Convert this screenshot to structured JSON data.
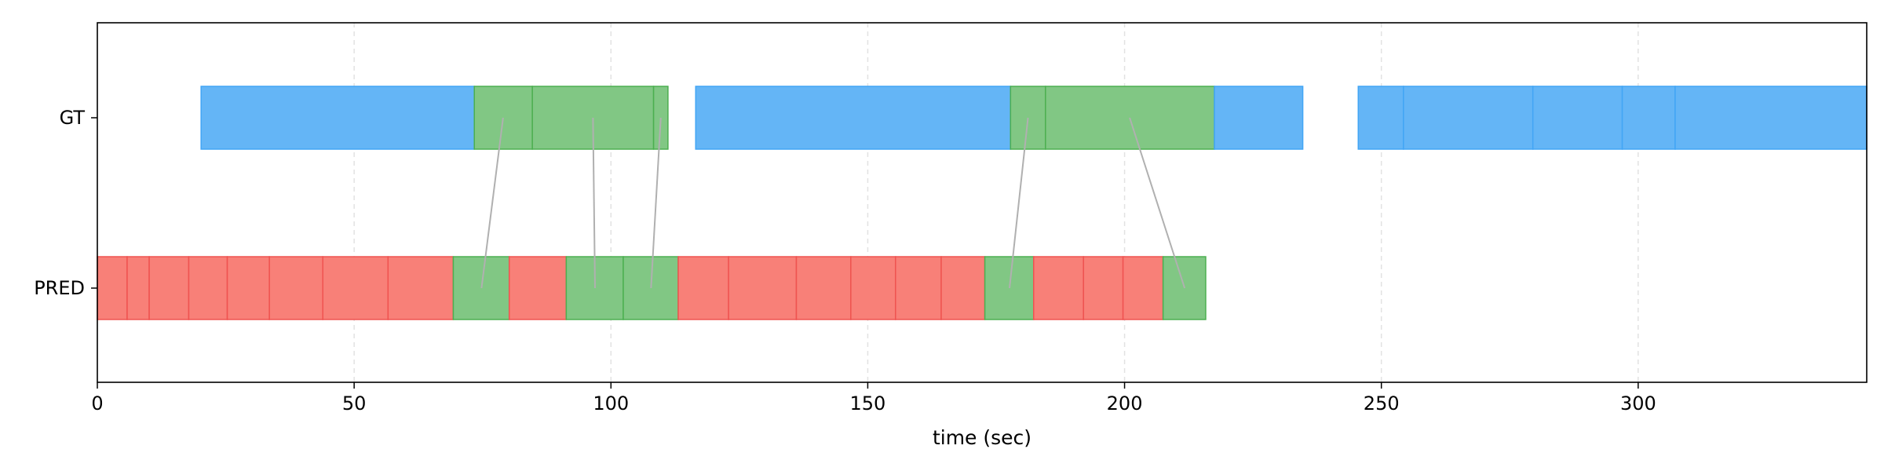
{
  "chart_data": {
    "type": "timeline",
    "xlabel": "time (sec)",
    "xlim": [
      0,
      344.5
    ],
    "xticks": [
      0,
      50,
      100,
      150,
      200,
      250,
      300
    ],
    "grid": "vertical-dashed",
    "rows": [
      "GT",
      "PRED"
    ],
    "colors": {
      "unmatched_gt": "#64b5f6",
      "unmatched_gt_edge": "#42a5f5",
      "matched": "#81c784",
      "matched_edge": "#4caf50",
      "unmatched_pred": "#f88078",
      "unmatched_pred_edge": "#ef5350",
      "link": "#b0b0b0"
    },
    "gt_segments": [
      {
        "start": 20.2,
        "end": 73.4,
        "matched": false
      },
      {
        "start": 73.4,
        "end": 84.7,
        "matched": true
      },
      {
        "start": 84.7,
        "end": 108.3,
        "matched": true
      },
      {
        "start": 108.3,
        "end": 111.1,
        "matched": true
      },
      {
        "start": 116.5,
        "end": 177.8,
        "matched": false
      },
      {
        "start": 177.8,
        "end": 184.6,
        "matched": true
      },
      {
        "start": 184.6,
        "end": 217.5,
        "matched": true
      },
      {
        "start": 217.5,
        "end": 234.7,
        "matched": false
      },
      {
        "start": 245.5,
        "end": 254.3,
        "matched": false
      },
      {
        "start": 254.3,
        "end": 279.5,
        "matched": false
      },
      {
        "start": 279.5,
        "end": 296.9,
        "matched": false
      },
      {
        "start": 296.9,
        "end": 307.2,
        "matched": false
      },
      {
        "start": 307.2,
        "end": 344.5,
        "matched": false
      }
    ],
    "pred_segments": [
      {
        "start": 0.0,
        "end": 5.8,
        "matched": false
      },
      {
        "start": 5.8,
        "end": 10.1,
        "matched": false
      },
      {
        "start": 10.1,
        "end": 17.8,
        "matched": false
      },
      {
        "start": 17.8,
        "end": 25.3,
        "matched": false
      },
      {
        "start": 25.3,
        "end": 33.5,
        "matched": false
      },
      {
        "start": 33.5,
        "end": 43.9,
        "matched": false
      },
      {
        "start": 43.9,
        "end": 56.6,
        "matched": false
      },
      {
        "start": 56.6,
        "end": 69.3,
        "matched": false
      },
      {
        "start": 69.3,
        "end": 80.2,
        "matched": true
      },
      {
        "start": 80.2,
        "end": 91.3,
        "matched": false
      },
      {
        "start": 91.3,
        "end": 102.4,
        "matched": true
      },
      {
        "start": 102.4,
        "end": 113.1,
        "matched": true
      },
      {
        "start": 113.1,
        "end": 122.9,
        "matched": false
      },
      {
        "start": 122.9,
        "end": 136.1,
        "matched": false
      },
      {
        "start": 136.1,
        "end": 146.7,
        "matched": false
      },
      {
        "start": 146.7,
        "end": 155.4,
        "matched": false
      },
      {
        "start": 155.4,
        "end": 164.3,
        "matched": false
      },
      {
        "start": 164.3,
        "end": 172.8,
        "matched": false
      },
      {
        "start": 172.8,
        "end": 182.3,
        "matched": true
      },
      {
        "start": 182.3,
        "end": 192.0,
        "matched": false
      },
      {
        "start": 192.0,
        "end": 199.7,
        "matched": false
      },
      {
        "start": 199.7,
        "end": 207.5,
        "matched": false
      },
      {
        "start": 207.5,
        "end": 215.8,
        "matched": true
      }
    ],
    "links": [
      {
        "gt_x": 79.0,
        "pred_x": 74.8
      },
      {
        "gt_x": 96.5,
        "pred_x": 96.9
      },
      {
        "gt_x": 109.7,
        "pred_x": 107.8
      },
      {
        "gt_x": 181.2,
        "pred_x": 177.6
      },
      {
        "gt_x": 201.0,
        "pred_x": 211.7
      }
    ]
  }
}
